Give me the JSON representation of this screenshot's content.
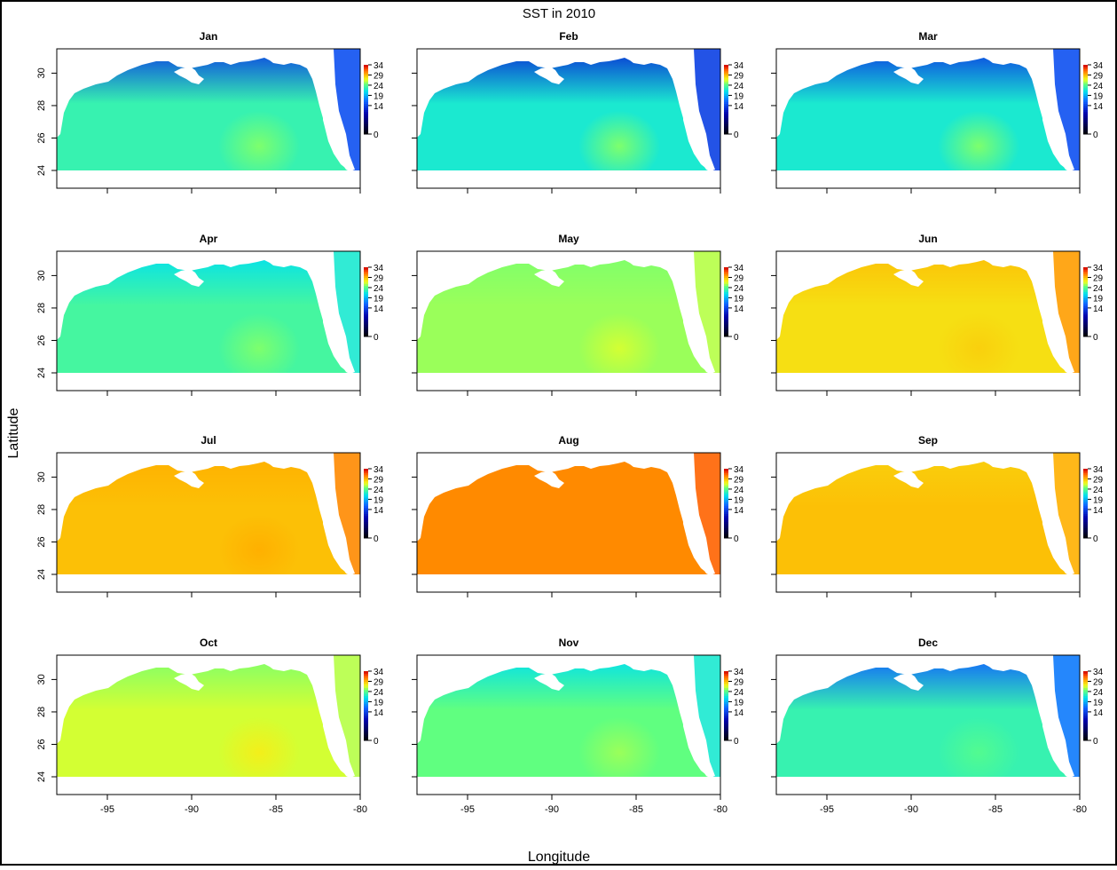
{
  "chart_data": {
    "type": "heatmap",
    "title": "SST in 2010",
    "xlabel": "Longitude",
    "ylabel": "Latitude",
    "xlim": [
      -98,
      -80
    ],
    "ylim": [
      24,
      31.5
    ],
    "x_ticks": [
      -95,
      -90,
      -85,
      -80
    ],
    "x_tick_labels": [
      "-95",
      "-90",
      "-85",
      "-80"
    ],
    "y_ticks": [
      24,
      26,
      28,
      30
    ],
    "y_tick_labels": [
      "24",
      "26",
      "28",
      "30"
    ],
    "legend_ticks": [
      34,
      29,
      24,
      19,
      14,
      0
    ],
    "legend_tick_labels": [
      "34",
      "29",
      "24",
      "19",
      "14",
      "0"
    ],
    "colorscale": [
      "#000000",
      "#0000aa",
      "#1060ff",
      "#00e0f0",
      "#60ff80",
      "#f0ff20",
      "#ffb000",
      "#ff5000",
      "#cc0000"
    ],
    "land_color": "#ffffff",
    "layout": "4 rows x 3 columns",
    "panels": [
      {
        "month": "Jan",
        "offshore_sst": 23,
        "coastal_sst": 14,
        "loop_current_sst": 25
      },
      {
        "month": "Feb",
        "offshore_sst": 22,
        "coastal_sst": 13,
        "loop_current_sst": 25
      },
      {
        "month": "Mar",
        "offshore_sst": 22,
        "coastal_sst": 14,
        "loop_current_sst": 25
      },
      {
        "month": "Apr",
        "offshore_sst": 23.5,
        "coastal_sst": 21,
        "loop_current_sst": 25
      },
      {
        "month": "May",
        "offshore_sst": 25.5,
        "coastal_sst": 25,
        "loop_current_sst": 26.5
      },
      {
        "month": "Jun",
        "offshore_sst": 28,
        "coastal_sst": 29,
        "loop_current_sst": 28.5
      },
      {
        "month": "Jul",
        "offshore_sst": 29,
        "coastal_sst": 29.5,
        "loop_current_sst": 29.5
      },
      {
        "month": "Aug",
        "offshore_sst": 30.5,
        "coastal_sst": 30.5,
        "loop_current_sst": 30.5
      },
      {
        "month": "Sep",
        "offshore_sst": 29,
        "coastal_sst": 28.5,
        "loop_current_sst": 29
      },
      {
        "month": "Oct",
        "offshore_sst": 26.5,
        "coastal_sst": 25,
        "loop_current_sst": 27.5
      },
      {
        "month": "Nov",
        "offshore_sst": 24.5,
        "coastal_sst": 21,
        "loop_current_sst": 25.5
      },
      {
        "month": "Dec",
        "offshore_sst": 23,
        "coastal_sst": 16,
        "loop_current_sst": 24
      }
    ]
  }
}
